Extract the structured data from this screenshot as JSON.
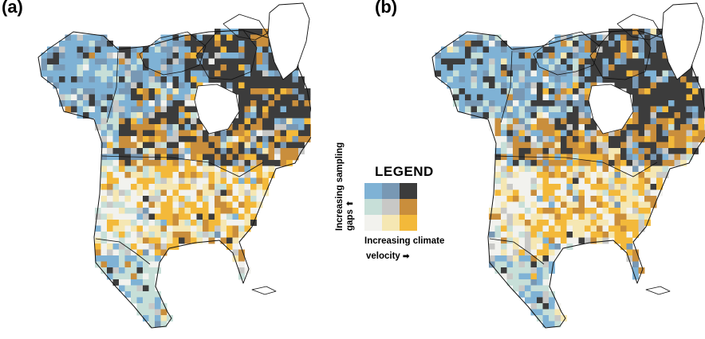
{
  "panels": [
    {
      "id": "a",
      "label": "(a)"
    },
    {
      "id": "b",
      "label": "(b)"
    }
  ],
  "legend": {
    "title": "LEGEND",
    "y_label_line1": "Increasing sampling",
    "y_label_line2": "gaps",
    "x_label_line1": "Increasing climate",
    "x_label_line2": "velocity",
    "arrow_up": "⬆",
    "arrow_right": "➡",
    "colors": [
      [
        "#7fb2d5",
        "#7898b4",
        "#3c3c3c"
      ],
      [
        "#c7dfd8",
        "#c8c8c6",
        "#c98e3c"
      ],
      [
        "#f2f2ee",
        "#f5e7b3",
        "#f3b93a"
      ]
    ]
  },
  "map": {
    "background": "#ffffff",
    "outline_color": "#111111",
    "region_bias": {
      "arctic_islands": "high gaps, high velocity (dark grey) with blue patches",
      "alaska_western_canada": "high gaps, low velocity (blue)",
      "central_canada_band": "medium gaps, high velocity (orange)",
      "conterminous_us": "low gaps, mixed velocity (white / pale yellow / orange)",
      "mexico": "medium gaps, low velocity (pale green / blue)"
    }
  }
}
